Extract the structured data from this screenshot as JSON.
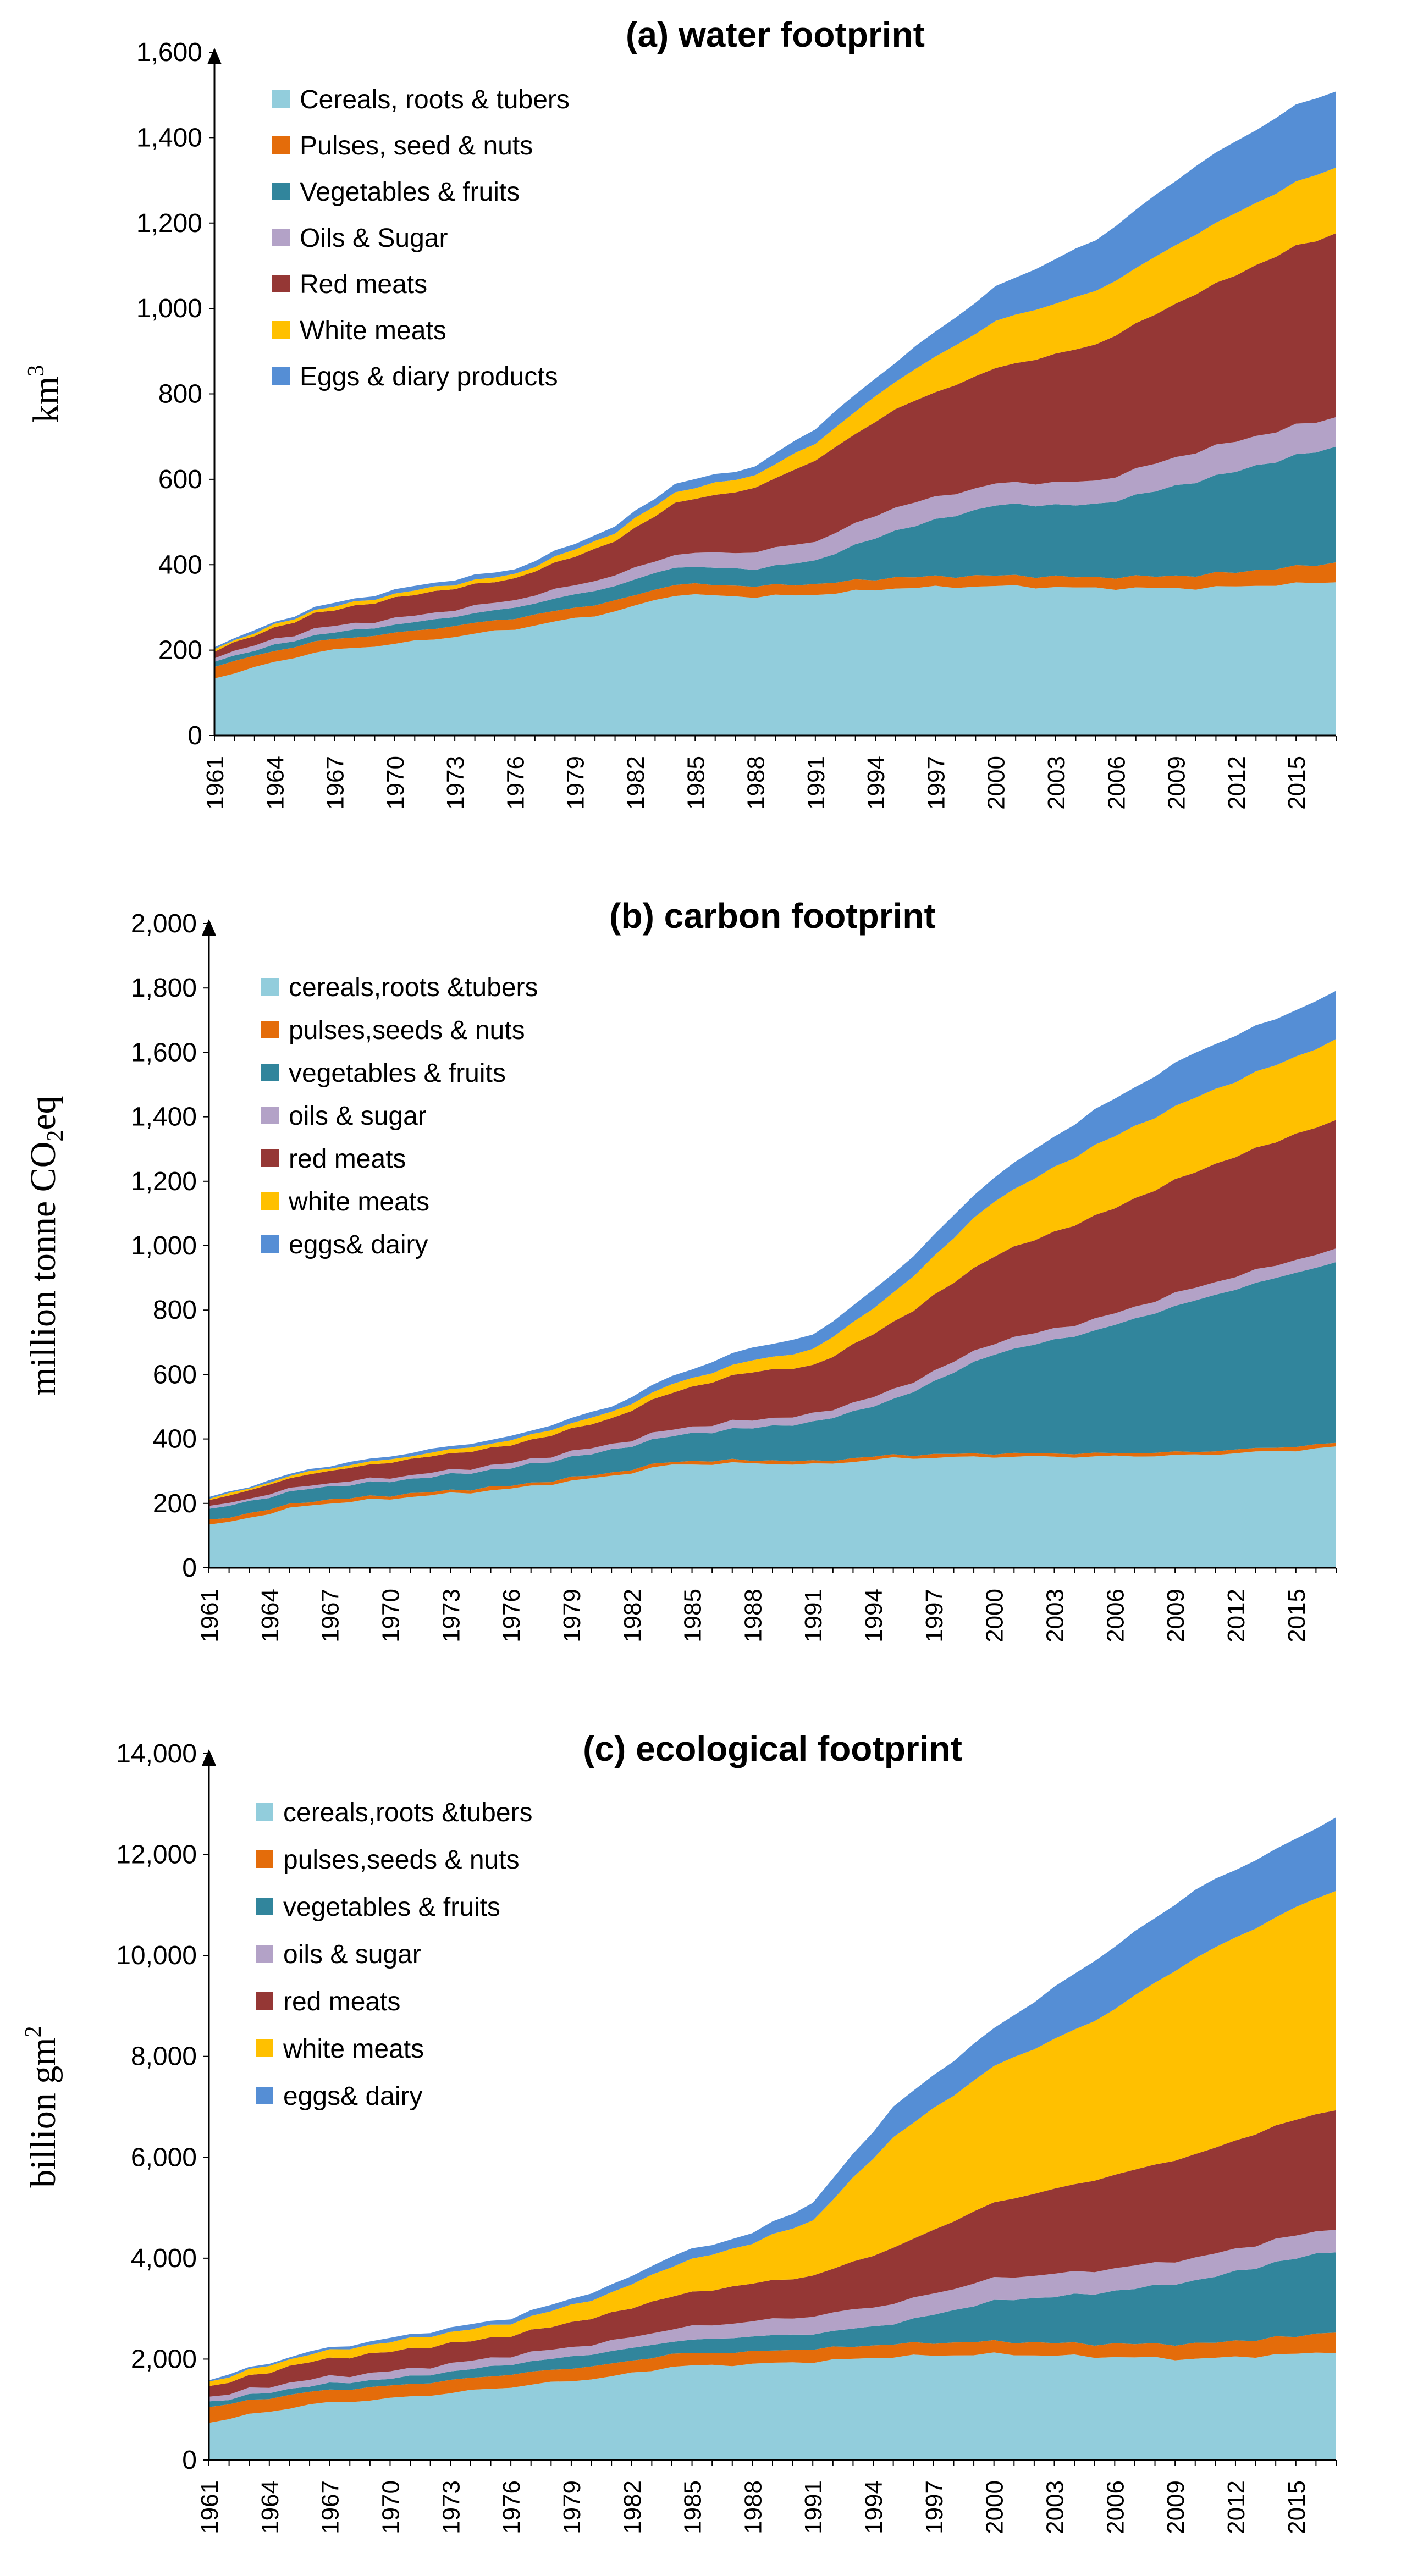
{
  "colors": {
    "cereals": "#92CDDC",
    "pulses": "#E46C0A",
    "vegetables": "#31859C",
    "oils": "#B3A2C7",
    "red_meats": "#953735",
    "white_meats": "#FFC000",
    "eggs": "#558ED5"
  },
  "chart_data": [
    {
      "type": "area",
      "stacked": true,
      "title": "(a) water footprint",
      "xlabel": "",
      "ylabel": "km³",
      "ylabel_parts": [
        "km",
        "3"
      ],
      "ylim": [
        0,
        1600
      ],
      "yticks": [
        "0",
        "200",
        "400",
        "600",
        "800",
        "1,000",
        "1,200",
        "1,400",
        "1,600"
      ],
      "xticks": [
        "1961",
        "1964",
        "1967",
        "1970",
        "1973",
        "1976",
        "1979",
        "1982",
        "1985",
        "1988",
        "1991",
        "1994",
        "1997",
        "2000",
        "2003",
        "2006",
        "2009",
        "2012",
        "2015"
      ],
      "x_range": [
        1961,
        2017
      ],
      "anchors": [
        1961,
        1966,
        1971,
        1976,
        1981,
        1984,
        1988,
        1991,
        1995,
        2000,
        2005,
        2010,
        2015,
        2017
      ],
      "legend_position": "top-left",
      "series": [
        {
          "name": "Cereals, roots & tubers",
          "color_key": "cereals",
          "values": [
            135,
            195,
            220,
            250,
            290,
            330,
            325,
            330,
            345,
            350,
            345,
            345,
            355,
            360
          ]
        },
        {
          "name": "Pulses, seed & nuts",
          "color_key": "pulses",
          "values": [
            28,
            25,
            25,
            25,
            25,
            25,
            25,
            25,
            25,
            25,
            25,
            30,
            40,
            45
          ]
        },
        {
          "name": "Vegetables & fruits",
          "color_key": "vegetables",
          "values": [
            12,
            15,
            20,
            25,
            35,
            40,
            40,
            55,
            110,
            165,
            170,
            220,
            260,
            270
          ]
        },
        {
          "name": "Oils & Sugar",
          "color_key": "oils",
          "values": [
            10,
            15,
            15,
            18,
            25,
            30,
            40,
            45,
            55,
            50,
            55,
            70,
            70,
            70
          ]
        },
        {
          "name": "Red meats",
          "color_key": "red_meats",
          "values": [
            15,
            35,
            50,
            50,
            80,
            120,
            150,
            190,
            230,
            270,
            320,
            370,
            420,
            430
          ]
        },
        {
          "name": "White meats",
          "color_key": "white_meats",
          "values": [
            5,
            8,
            10,
            10,
            20,
            25,
            30,
            40,
            65,
            110,
            125,
            140,
            150,
            155
          ]
        },
        {
          "name": "Eggs & diary products",
          "color_key": "eggs",
          "values": [
            5,
            7,
            10,
            12,
            15,
            20,
            20,
            35,
            45,
            80,
            120,
            160,
            180,
            180
          ]
        }
      ]
    },
    {
      "type": "area",
      "stacked": true,
      "title": "(b) carbon footprint",
      "xlabel": "",
      "ylabel": "million tonne CO₂eq",
      "ylabel_parts": [
        "million tonne CO",
        "2",
        "eq"
      ],
      "ylim": [
        0,
        2000
      ],
      "yticks": [
        "0",
        "200",
        "400",
        "600",
        "800",
        "1,000",
        "1,200",
        "1,400",
        "1,600",
        "1,800",
        "2,000"
      ],
      "xticks": [
        "1961",
        "1964",
        "1967",
        "1970",
        "1973",
        "1976",
        "1979",
        "1982",
        "1985",
        "1988",
        "1991",
        "1994",
        "1997",
        "2000",
        "2003",
        "2006",
        "2009",
        "2012",
        "2015"
      ],
      "x_range": [
        1961,
        2017
      ],
      "anchors": [
        1961,
        1966,
        1971,
        1976,
        1981,
        1984,
        1988,
        1991,
        1995,
        2000,
        2005,
        2010,
        2015,
        2017
      ],
      "legend_position": "top-left",
      "series": [
        {
          "name": "cereals,roots &tubers",
          "color_key": "cereals",
          "values": [
            130,
            195,
            220,
            245,
            285,
            320,
            325,
            320,
            340,
            345,
            345,
            350,
            365,
            375
          ]
        },
        {
          "name": "pulses,seeds & nuts",
          "color_key": "pulses",
          "values": [
            15,
            12,
            10,
            10,
            10,
            10,
            10,
            10,
            10,
            10,
            10,
            10,
            12,
            12
          ]
        },
        {
          "name": "vegetables & fruits",
          "color_key": "vegetables",
          "values": [
            35,
            40,
            45,
            55,
            70,
            80,
            100,
            120,
            170,
            310,
            380,
            470,
            540,
            560
          ]
        },
        {
          "name": "oils & sugar",
          "color_key": "oils",
          "values": [
            8,
            10,
            12,
            15,
            18,
            20,
            25,
            25,
            30,
            35,
            35,
            40,
            40,
            40
          ]
        },
        {
          "name": "red meats",
          "color_key": "red_meats",
          "values": [
            20,
            35,
            50,
            55,
            80,
            115,
            150,
            150,
            210,
            270,
            320,
            360,
            390,
            400
          ]
        },
        {
          "name": "white meats",
          "color_key": "white_meats",
          "values": [
            5,
            8,
            10,
            15,
            20,
            25,
            35,
            50,
            90,
            170,
            220,
            230,
            240,
            250
          ]
        },
        {
          "name": "eggs& dairy",
          "color_key": "eggs",
          "values": [
            5,
            7,
            10,
            12,
            18,
            25,
            40,
            45,
            60,
            75,
            110,
            140,
            145,
            150
          ]
        }
      ]
    },
    {
      "type": "area",
      "stacked": true,
      "title": "(c) ecological footprint",
      "xlabel": "",
      "ylabel": "billion gm²",
      "ylabel_parts": [
        "billion gm",
        "2"
      ],
      "ylim": [
        0,
        14000
      ],
      "yticks": [
        "0",
        "2,000",
        "4,000",
        "6,000",
        "8,000",
        "10,000",
        "12,000",
        "14,000"
      ],
      "xticks": [
        "1961",
        "1964",
        "1967",
        "1970",
        "1973",
        "1976",
        "1979",
        "1982",
        "1985",
        "1988",
        "1991",
        "1994",
        "1997",
        "2000",
        "2003",
        "2006",
        "2009",
        "2012",
        "2015"
      ],
      "x_range": [
        1961,
        2017
      ],
      "anchors": [
        1961,
        1966,
        1971,
        1976,
        1981,
        1984,
        1988,
        1991,
        1995,
        2000,
        2005,
        2010,
        2015,
        2017
      ],
      "legend_position": "top-left",
      "series": [
        {
          "name": "cereals,roots &tubers",
          "color_key": "cereals",
          "values": [
            750,
            1100,
            1250,
            1450,
            1650,
            1850,
            1900,
            1950,
            2050,
            2100,
            2050,
            2000,
            2100,
            2150
          ]
        },
        {
          "name": "pulses,seeds & nuts",
          "color_key": "pulses",
          "values": [
            300,
            250,
            250,
            250,
            250,
            250,
            250,
            250,
            250,
            250,
            250,
            300,
            350,
            400
          ]
        },
        {
          "name": "vegetables & fruits",
          "color_key": "vegetables",
          "values": [
            100,
            120,
            150,
            200,
            250,
            250,
            300,
            300,
            400,
            800,
            1000,
            1250,
            1550,
            1600
          ]
        },
        {
          "name": "oils & sugar",
          "color_key": "oils",
          "values": [
            100,
            130,
            150,
            170,
            200,
            250,
            300,
            350,
            400,
            450,
            450,
            450,
            450,
            450
          ]
        },
        {
          "name": "red meats",
          "color_key": "red_meats",
          "values": [
            200,
            350,
            400,
            400,
            550,
            650,
            750,
            800,
            1100,
            1500,
            1800,
            2050,
            2300,
            2350
          ]
        },
        {
          "name": "white meats",
          "color_key": "white_meats",
          "values": [
            100,
            150,
            200,
            250,
            400,
            600,
            800,
            1100,
            2200,
            2700,
            3150,
            3900,
            4200,
            4350
          ]
        },
        {
          "name": "eggs& dairy",
          "color_key": "eggs",
          "values": [
            40,
            50,
            80,
            100,
            150,
            200,
            200,
            350,
            600,
            750,
            1200,
            1350,
            1350,
            1450
          ]
        }
      ]
    }
  ]
}
